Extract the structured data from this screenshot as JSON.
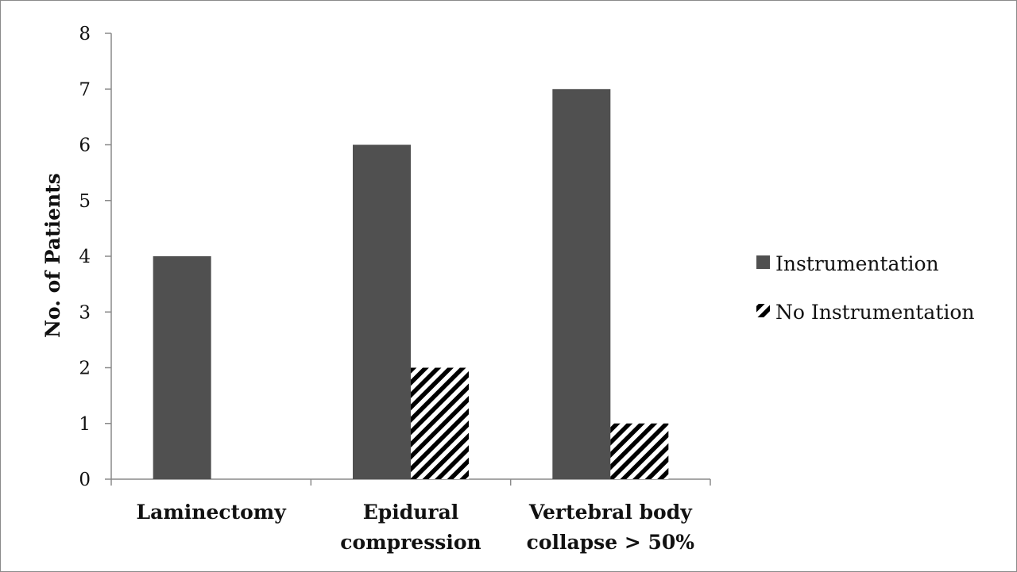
{
  "chart_data": {
    "type": "bar",
    "categories": [
      [
        "Laminectomy"
      ],
      [
        "Epidural",
        "compression"
      ],
      [
        "Vertebral body",
        "collapse > 50%"
      ]
    ],
    "series": [
      {
        "name": "Instrumentation",
        "values": [
          4,
          6,
          7
        ],
        "color": "#505050",
        "pattern": "solid"
      },
      {
        "name": "No Instrumentation",
        "values": [
          0,
          2,
          1
        ],
        "color": "#000000",
        "pattern": "diagonal-hatch"
      }
    ],
    "ylabel": "No. of Patients",
    "ylim": [
      0,
      8
    ],
    "yticks": [
      0,
      1,
      2,
      3,
      4,
      5,
      6,
      7,
      8
    ],
    "grid": false,
    "legend": "right"
  }
}
